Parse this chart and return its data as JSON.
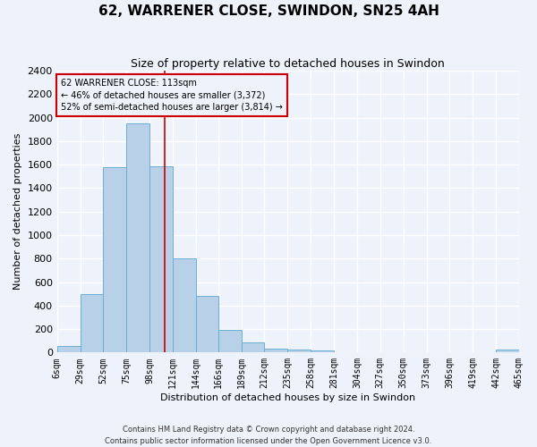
{
  "title": "62, WARRENER CLOSE, SWINDON, SN25 4AH",
  "subtitle": "Size of property relative to detached houses in Swindon",
  "xlabel": "Distribution of detached houses by size in Swindon",
  "ylabel": "Number of detached properties",
  "footer_line1": "Contains HM Land Registry data © Crown copyright and database right 2024.",
  "footer_line2": "Contains public sector information licensed under the Open Government Licence v3.0.",
  "bin_edges": [
    6,
    29,
    52,
    75,
    98,
    121,
    144,
    166,
    189,
    212,
    235,
    258,
    281,
    304,
    327,
    350,
    373,
    396,
    419,
    442,
    465
  ],
  "bar_heights": [
    55,
    500,
    1580,
    1950,
    1590,
    800,
    480,
    195,
    90,
    35,
    28,
    18,
    0,
    0,
    0,
    0,
    0,
    0,
    0,
    22
  ],
  "bar_color": "#b8d0e8",
  "bar_edge_color": "#6baed6",
  "vline_x": 113,
  "vline_color": "#cc0000",
  "ylim": [
    0,
    2400
  ],
  "yticks": [
    0,
    200,
    400,
    600,
    800,
    1000,
    1200,
    1400,
    1600,
    1800,
    2000,
    2200,
    2400
  ],
  "annotation_text": "62 WARRENER CLOSE: 113sqm\n← 46% of detached houses are smaller (3,372)\n52% of semi-detached houses are larger (3,814) →",
  "annotation_box_color": "#cc0000",
  "bg_color": "#eef2fa",
  "grid_color": "#ffffff",
  "title_fontsize": 11,
  "subtitle_fontsize": 9,
  "xlabel_fontsize": 8,
  "ylabel_fontsize": 8,
  "tick_label_fontsize": 7,
  "annotation_fontsize": 7,
  "footer_fontsize": 6
}
